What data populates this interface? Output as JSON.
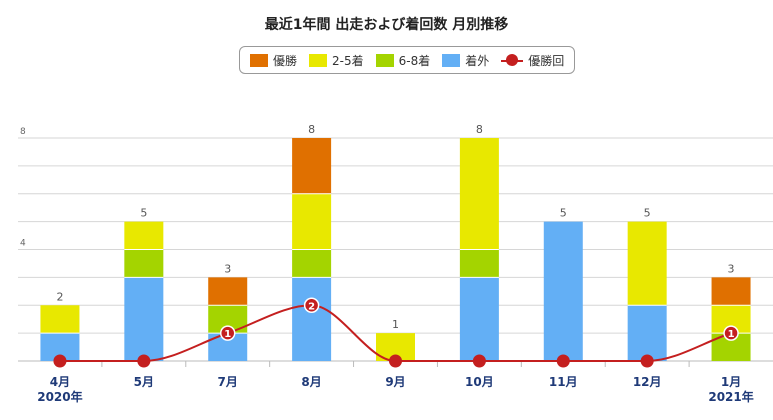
{
  "chart_data": {
    "type": "bar",
    "title": "最近1年間 出走および着回数 月別推移",
    "categories": [
      "4月",
      "5月",
      "7月",
      "8月",
      "9月",
      "10月",
      "11月",
      "12月",
      "1月"
    ],
    "year_labels": [
      "2020年",
      "",
      "",
      "",
      "",
      "",
      "",
      "",
      "2021年"
    ],
    "stacked": true,
    "series": [
      {
        "name": "着外",
        "color": "#63aff5",
        "values": [
          1,
          3,
          1,
          3,
          0,
          3,
          5,
          2,
          0
        ]
      },
      {
        "name": "6-8着",
        "color": "#a4d400",
        "values": [
          0,
          1,
          1,
          1,
          0,
          1,
          0,
          0,
          1
        ]
      },
      {
        "name": "2-5着",
        "color": "#e8e800",
        "values": [
          1,
          1,
          0,
          2,
          1,
          4,
          0,
          3,
          1
        ]
      },
      {
        "name": "優勝",
        "color": "#e07000",
        "values": [
          0,
          0,
          1,
          2,
          0,
          0,
          0,
          0,
          1
        ]
      }
    ],
    "totals": [
      "2",
      "5",
      "3",
      "8",
      "1",
      "8",
      "5",
      "5",
      "3"
    ],
    "line_series": {
      "name": "優勝回",
      "color": "#c41f1f",
      "values": [
        0,
        0,
        1,
        2,
        0,
        0,
        0,
        0,
        1
      ],
      "labels": [
        "",
        "",
        "1",
        "2",
        "",
        "",
        "",
        "",
        "1"
      ]
    },
    "y_ticks": [
      "4",
      "8"
    ],
    "ylim": [
      0,
      8
    ],
    "grid": true,
    "legend_position": "top-center"
  }
}
